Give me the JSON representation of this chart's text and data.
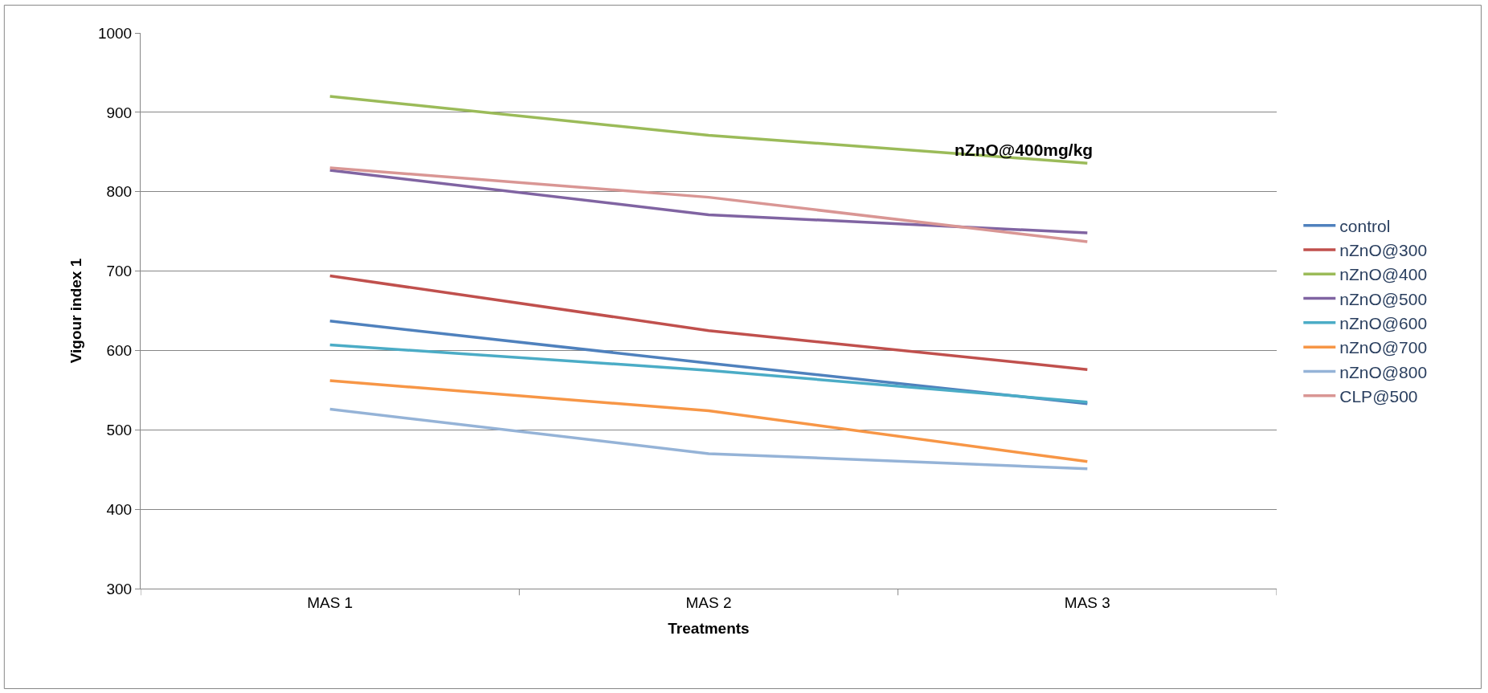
{
  "chart_data": {
    "type": "line",
    "xlabel": "Treatments",
    "ylabel": "Vigour index 1",
    "categories": [
      "MAS 1",
      "MAS 2",
      "MAS 3"
    ],
    "series": [
      {
        "name": "control",
        "color": "#4f81bd",
        "values": [
          637,
          584,
          533
        ]
      },
      {
        "name": "nZnO@300",
        "color": "#c0504d",
        "values": [
          694,
          625,
          576
        ]
      },
      {
        "name": "nZnO@400",
        "color": "#9bbb59",
        "values": [
          920,
          871,
          836
        ]
      },
      {
        "name": "nZnO@500",
        "color": "#8064a2",
        "values": [
          827,
          771,
          748
        ]
      },
      {
        "name": "nZnO@600",
        "color": "#4bacc6",
        "values": [
          607,
          575,
          535
        ]
      },
      {
        "name": "nZnO@700",
        "color": "#f79646",
        "values": [
          562,
          524,
          460
        ]
      },
      {
        "name": "nZnO@800",
        "color": "#95b3d7",
        "values": [
          526,
          470,
          451
        ]
      },
      {
        "name": "CLP@500",
        "color": "#d99694",
        "values": [
          830,
          793,
          737
        ]
      }
    ],
    "ylim": [
      300,
      1000
    ],
    "yticks": [
      300,
      400,
      500,
      600,
      700,
      800,
      900,
      1000
    ],
    "grid": "y",
    "legend": "right",
    "marker": "none",
    "line_style": "solid",
    "annotations": [
      "nZnO@400mg/kg"
    ]
  }
}
